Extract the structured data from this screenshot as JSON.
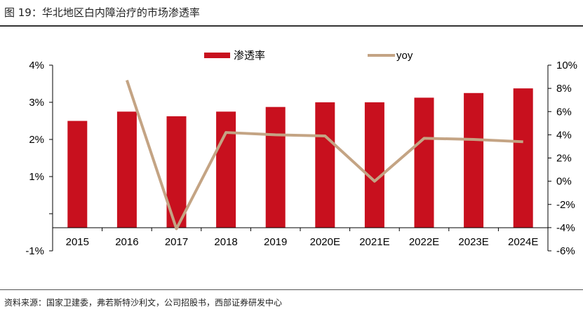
{
  "header": {
    "title": "图 19：华北地区白内障治疗的市场渗透率"
  },
  "footer": {
    "source": "资料来源：国家卫建委，弗若斯特沙利文，公司招股书，西部证券研发中心"
  },
  "chart_data": {
    "type": "bar+line",
    "categories": [
      "2015",
      "2016",
      "2017",
      "2018",
      "2019",
      "2020E",
      "2021E",
      "2022E",
      "2023E",
      "2024E"
    ],
    "series": [
      {
        "name": "渗透率",
        "type": "bar",
        "axis": "left",
        "color": "#c8101e",
        "values": [
          2.8,
          3.0,
          2.9,
          3.0,
          3.1,
          3.2,
          3.2,
          3.3,
          3.4,
          3.5
        ]
      },
      {
        "name": "yoy",
        "type": "line",
        "axis": "right",
        "color": "#c4a484",
        "values": [
          null,
          8.7,
          -4.1,
          4.2,
          4.0,
          3.9,
          0.0,
          3.7,
          3.6,
          3.4
        ]
      }
    ],
    "left_axis": {
      "tick_labels": [
        "4%",
        "3%",
        "2%",
        "1%",
        "",
        "-1%"
      ]
    },
    "right_axis": {
      "ylim": [
        -6,
        10
      ],
      "tick_labels": [
        "10%",
        "8%",
        "6%",
        "4%",
        "2%",
        "0%",
        "-2%",
        "-4%",
        "-6%"
      ]
    },
    "legend": "top",
    "grid": false
  }
}
